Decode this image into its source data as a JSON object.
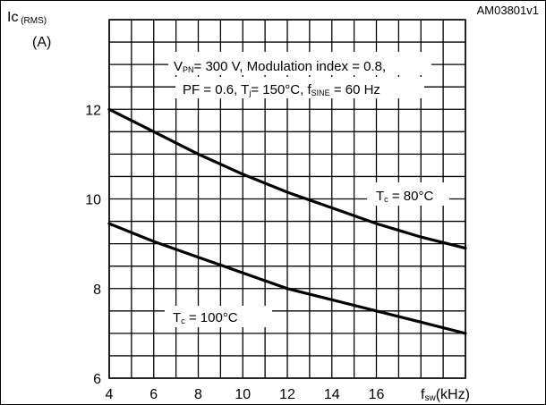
{
  "figure": {
    "doc_id": "AM03801v1",
    "colors": {
      "background": "#ffffff",
      "grid": "#000000",
      "curve": "#000000",
      "text": "#000000"
    }
  },
  "chart_data": {
    "type": "line",
    "title": "",
    "ylabel_main": "Ic",
    "ylabel_sub": "(RMS)",
    "yunit": "(A)",
    "xlabel_main": "f",
    "xlabel_sub": "sw",
    "xunit": "(kHz)",
    "xlim": [
      4,
      20
    ],
    "ylim": [
      6,
      14
    ],
    "x_ticks": [
      4,
      6,
      8,
      10,
      12,
      14,
      16
    ],
    "y_ticks": [
      6,
      8,
      10,
      12
    ],
    "grid": true,
    "conditions": [
      [
        {
          "t": "V"
        },
        {
          "t": "PN",
          "sub": true
        },
        {
          "t": "= 300 V, Modulation index = 0.8,"
        }
      ],
      [
        {
          "t": "PF = 0.6, T"
        },
        {
          "t": "j",
          "sub": true
        },
        {
          "t": "= 150°C, f"
        },
        {
          "t": "SINE",
          "sub": true
        },
        {
          "t": " = 60 Hz"
        }
      ]
    ],
    "series": [
      {
        "label_main": "T",
        "label_sub": "c",
        "label_rest": " = 80°C",
        "x": [
          4,
          6,
          8,
          10,
          12,
          14,
          16,
          18,
          20
        ],
        "values": [
          12.0,
          11.5,
          11.0,
          10.55,
          10.15,
          9.8,
          9.45,
          9.15,
          8.9
        ]
      },
      {
        "label_main": "T",
        "label_sub": "c",
        "label_rest": " = 100°C",
        "x": [
          4,
          6,
          8,
          10,
          12,
          14,
          16,
          18,
          20
        ],
        "values": [
          9.45,
          9.05,
          8.7,
          8.35,
          8.0,
          7.75,
          7.5,
          7.25,
          7.0
        ]
      }
    ]
  }
}
